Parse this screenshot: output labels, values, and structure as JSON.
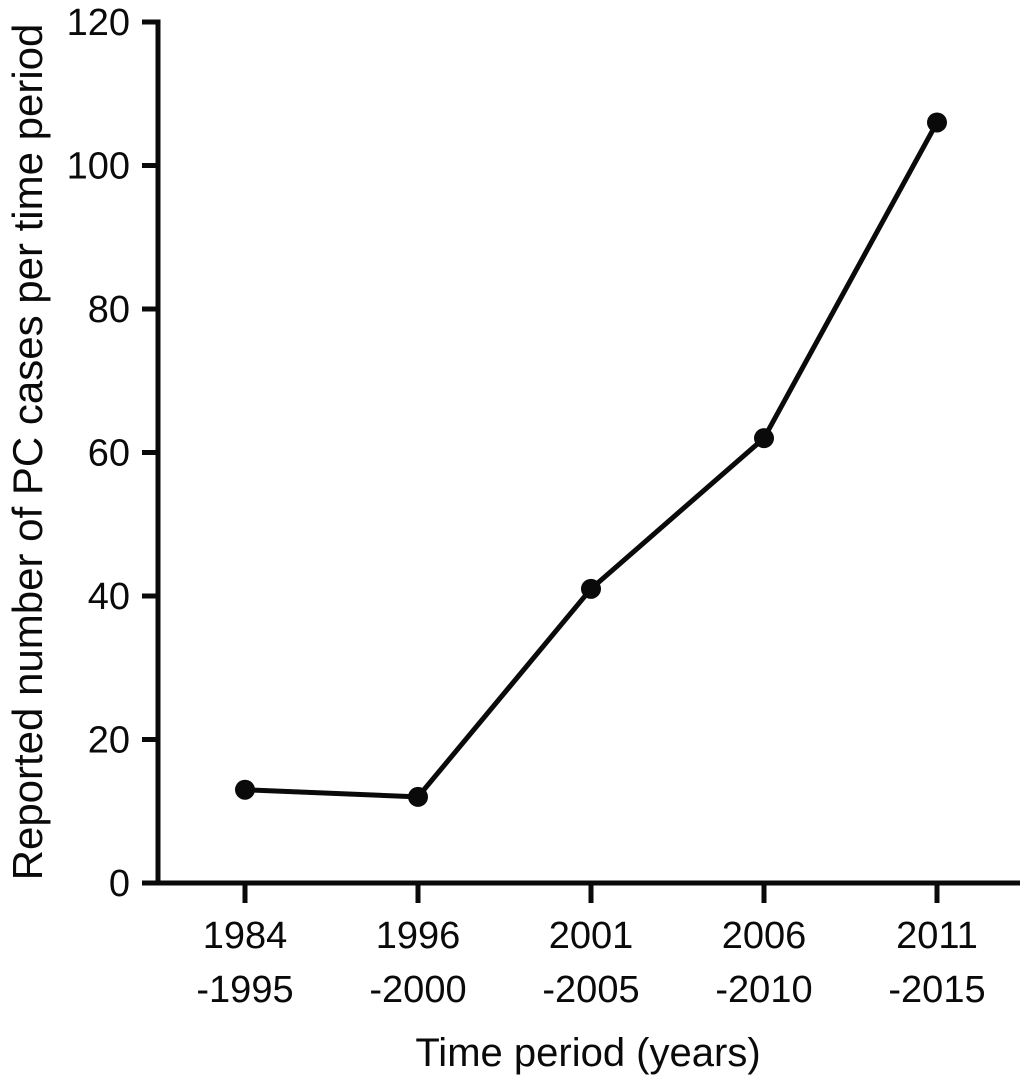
{
  "figure": {
    "background": "#ffffff",
    "ink_color": "#0a0a0a"
  },
  "chart_data": {
    "type": "line",
    "xlabel": "Time period (years)",
    "ylabel": "Reported number of PC cases per time period",
    "categories": [
      [
        "1984",
        "-1995"
      ],
      [
        "1996",
        "-2000"
      ],
      [
        "2001",
        "-2005"
      ],
      [
        "2006",
        "-2010"
      ],
      [
        "2011",
        "-2015"
      ]
    ],
    "values": [
      13,
      12,
      41,
      62,
      106
    ],
    "ylim": [
      0,
      120
    ],
    "yticks": [
      0,
      20,
      40,
      60,
      80,
      100,
      120
    ],
    "grid": false,
    "legend_position": "none",
    "marker": "filled-circle",
    "line_color": "#0a0a0a"
  }
}
